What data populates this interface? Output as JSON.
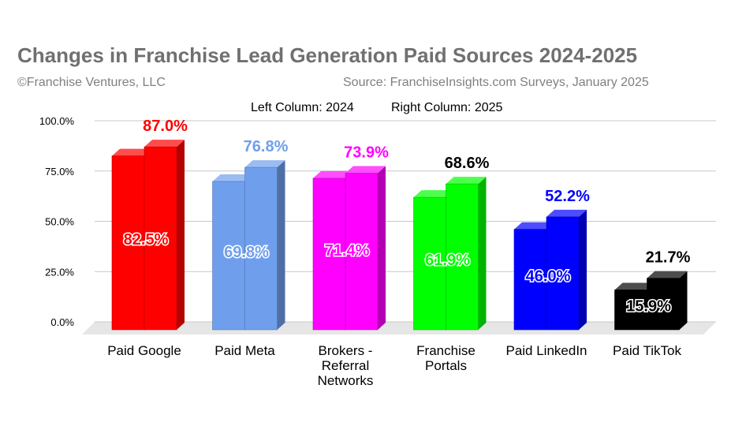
{
  "chart_data": {
    "type": "bar",
    "title": "Changes in Franchise Lead Generation Paid Sources 2024-2025",
    "subtitle_left": "©Franchise Ventures, LLC",
    "subtitle_right": "Source: FranchiseInsights.com Surveys, January 2025",
    "legend": [
      "Left Column: 2024",
      "Right Column: 2025"
    ],
    "categories": [
      [
        "Paid Google"
      ],
      [
        "Paid Meta"
      ],
      [
        "Brokers -",
        "Referral",
        "Networks"
      ],
      [
        "Franchise",
        "Portals"
      ],
      [
        "Paid LinkedIn"
      ],
      [
        "Paid TikTok"
      ]
    ],
    "series": [
      {
        "name": "Left Column: 2024",
        "values": [
          82.5,
          69.8,
          71.4,
          61.9,
          46.0,
          15.9
        ]
      },
      {
        "name": "Right Column: 2025",
        "values": [
          87.0,
          76.8,
          73.9,
          68.6,
          52.2,
          21.7
        ]
      }
    ],
    "value_labels_2024": [
      "82.5%",
      "69.8%",
      "71.4%",
      "61.9%",
      "46.0%",
      "15.9%"
    ],
    "value_labels_2025": [
      "87.0%",
      "76.8%",
      "73.9%",
      "68.6%",
      "52.2%",
      "21.7%"
    ],
    "yticks": [
      "0.0%",
      "25.0%",
      "50.0%",
      "75.0%",
      "100.0%"
    ],
    "ylim": [
      0,
      100
    ],
    "grid": true,
    "colors": [
      "#ff0000",
      "#6f9fec",
      "#ff00ff",
      "#00ff00",
      "#0000ff",
      "#000000"
    ],
    "label_colors_2025": [
      "#ff0000",
      "#6f9fec",
      "#ff00ff",
      "#000000",
      "#0000ff",
      "#000000"
    ]
  }
}
